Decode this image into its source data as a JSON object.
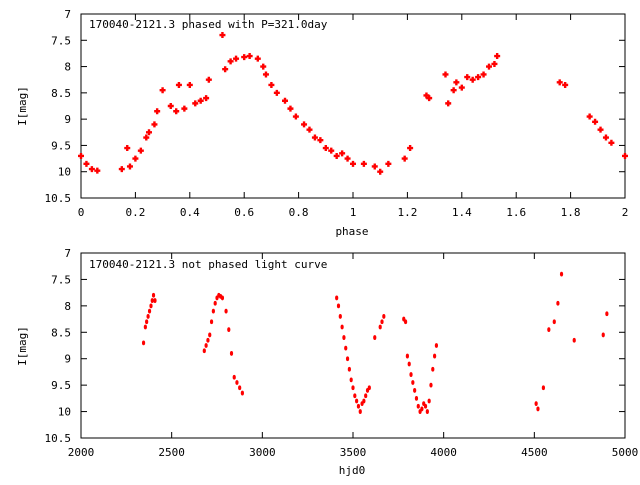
{
  "chart_data": [
    {
      "type": "scatter",
      "title": "170040-2121.3 phased with P=321.0day",
      "xlabel": "phase",
      "ylabel": "I[mag]",
      "xlim": [
        0,
        2
      ],
      "ylim": [
        10.5,
        7
      ],
      "y_inverted": true,
      "x_ticks": [
        "0",
        "0.2",
        "0.4",
        "0.6",
        "0.8",
        "1",
        "1.2",
        "1.4",
        "1.6",
        "1.8",
        "2"
      ],
      "y_ticks": [
        "7",
        "7.5",
        "8",
        "8.5",
        "9",
        "9.5",
        "10",
        "10.5"
      ],
      "marker_color": "#ff0000",
      "grid": false,
      "series": [
        {
          "x": [
            0.0,
            0.02,
            0.04,
            0.06,
            0.15,
            0.17,
            0.18,
            0.2,
            0.22,
            0.24,
            0.25,
            0.27,
            0.28,
            0.3,
            0.33,
            0.35,
            0.36,
            0.38,
            0.4,
            0.42,
            0.44,
            0.46,
            0.47,
            0.52,
            0.53,
            0.55,
            0.57,
            0.6,
            0.62,
            0.65,
            0.67,
            0.68,
            0.7,
            0.72,
            0.75,
            0.77,
            0.79,
            0.82,
            0.84,
            0.86,
            0.88,
            0.9,
            0.92,
            0.94,
            0.96,
            0.98,
            1.0,
            1.04,
            1.08,
            1.1,
            1.13,
            1.19,
            1.21,
            1.27,
            1.28,
            1.34,
            1.35,
            1.37,
            1.38,
            1.4,
            1.42,
            1.44,
            1.46,
            1.48,
            1.5,
            1.52,
            1.53,
            1.76,
            1.78,
            1.87,
            1.89,
            1.91,
            1.93,
            1.95,
            2.0
          ],
          "y": [
            9.7,
            9.85,
            9.95,
            9.98,
            9.95,
            9.55,
            9.9,
            9.75,
            9.6,
            9.35,
            9.25,
            9.1,
            8.85,
            8.45,
            8.75,
            8.85,
            8.35,
            8.8,
            8.35,
            8.7,
            8.65,
            8.6,
            8.25,
            7.4,
            8.05,
            7.9,
            7.85,
            7.82,
            7.8,
            7.85,
            8.0,
            8.15,
            8.35,
            8.5,
            8.65,
            8.8,
            8.95,
            9.1,
            9.2,
            9.35,
            9.4,
            9.55,
            9.6,
            9.7,
            9.65,
            9.75,
            9.85,
            9.85,
            9.9,
            10.0,
            9.85,
            9.75,
            9.55,
            8.55,
            8.6,
            8.15,
            8.7,
            8.45,
            8.3,
            8.4,
            8.2,
            8.25,
            8.2,
            8.15,
            8.0,
            7.95,
            7.8,
            8.3,
            8.35,
            8.95,
            9.05,
            9.2,
            9.35,
            9.45,
            9.7
          ]
        }
      ]
    },
    {
      "type": "scatter",
      "title": "170040-2121.3 not phased light curve",
      "xlabel": "hjd0",
      "ylabel": "I[mag]",
      "xlim": [
        2000,
        5000
      ],
      "ylim": [
        10.5,
        7
      ],
      "y_inverted": true,
      "x_ticks": [
        "2000",
        "2500",
        "3000",
        "3500",
        "4000",
        "4500",
        "5000"
      ],
      "y_ticks": [
        "7",
        "7.5",
        "8",
        "8.5",
        "9",
        "9.5",
        "10",
        "10.5"
      ],
      "marker_color": "#ff0000",
      "grid": false,
      "series": [
        {
          "x": [
            2345,
            2355,
            2362,
            2370,
            2378,
            2386,
            2393,
            2400,
            2408,
            2680,
            2690,
            2700,
            2710,
            2720,
            2730,
            2740,
            2750,
            2760,
            2770,
            2780,
            2800,
            2815,
            2830,
            2845,
            2860,
            2875,
            2890,
            3410,
            3420,
            3430,
            3440,
            3450,
            3460,
            3470,
            3480,
            3490,
            3500,
            3510,
            3520,
            3530,
            3540,
            3550,
            3560,
            3570,
            3580,
            3590,
            3620,
            3650,
            3660,
            3670,
            3780,
            3790,
            3800,
            3810,
            3820,
            3830,
            3840,
            3850,
            3860,
            3870,
            3880,
            3890,
            3900,
            3910,
            3920,
            3930,
            3940,
            3950,
            3960,
            4510,
            4520,
            4550,
            4580,
            4610,
            4630,
            4650,
            4720,
            4880,
            4900
          ],
          "y": [
            8.7,
            8.4,
            8.3,
            8.2,
            8.1,
            8.0,
            7.9,
            7.8,
            7.9,
            8.85,
            8.75,
            8.65,
            8.55,
            8.3,
            8.1,
            7.95,
            7.85,
            7.8,
            7.82,
            7.85,
            8.1,
            8.45,
            8.9,
            9.35,
            9.45,
            9.55,
            9.65,
            7.85,
            8.0,
            8.2,
            8.4,
            8.6,
            8.8,
            9.0,
            9.2,
            9.4,
            9.55,
            9.7,
            9.8,
            9.9,
            10.0,
            9.85,
            9.8,
            9.7,
            9.6,
            9.55,
            8.6,
            8.4,
            8.3,
            8.2,
            8.25,
            8.3,
            8.95,
            9.1,
            9.3,
            9.45,
            9.6,
            9.75,
            9.9,
            10.0,
            9.95,
            9.85,
            9.9,
            10.0,
            9.8,
            9.5,
            9.2,
            8.95,
            8.75,
            9.85,
            9.95,
            9.55,
            8.45,
            8.3,
            7.95,
            7.4,
            8.65,
            8.55,
            8.15
          ]
        }
      ]
    }
  ]
}
